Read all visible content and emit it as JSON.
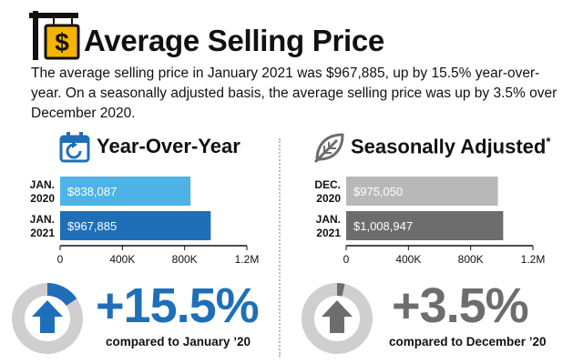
{
  "header": {
    "title": "Average Selling Price",
    "description": "The average selling price in January 2021 was $967,885, up by 15.5% year-over-year. On a seasonally adjusted basis, the average selling price was up by 3.5% over December 2020.",
    "icon": "dollar-sign-icon"
  },
  "yoy": {
    "title": "Year-Over-Year",
    "icon": "calendar-refresh-icon",
    "change": "+15.5%",
    "compared": "compared to January ’20",
    "gauge_fraction": 0.155
  },
  "sa": {
    "title": "Seasonally Adjusted",
    "footnote": "*",
    "icon": "leaf-icon",
    "change": "+3.5%",
    "compared": "compared to December  ’20",
    "gauge_fraction": 0.035
  },
  "colors": {
    "blue_light": "#4eb3e6",
    "blue_dark": "#1f6fb8",
    "grey_light": "#b8b8b8",
    "grey_dark": "#6d6d6d",
    "ring_bg": "#cfcfcf",
    "yellow": "#f4b400"
  },
  "chart_data": [
    {
      "type": "bar",
      "orientation": "horizontal",
      "title": "Year-Over-Year",
      "categories": [
        "JAN.\n2020",
        "JAN.\n2021"
      ],
      "values": [
        838087,
        967885
      ],
      "value_labels": [
        "$838,087",
        "$967,885"
      ],
      "xlim": [
        0,
        1200000
      ],
      "xticks": [
        0,
        400000,
        800000,
        1200000
      ],
      "xtick_labels": [
        "0",
        "400K",
        "800K",
        "1.2M"
      ]
    },
    {
      "type": "bar",
      "orientation": "horizontal",
      "title": "Seasonally Adjusted*",
      "categories": [
        "DEC.\n2020",
        "JAN.\n2021"
      ],
      "values": [
        975050,
        1008947
      ],
      "value_labels": [
        "$975,050",
        "$1,008,947"
      ],
      "xlim": [
        0,
        1200000
      ],
      "xticks": [
        0,
        400000,
        800000,
        1200000
      ],
      "xtick_labels": [
        "0",
        "400K",
        "800K",
        "1.2M"
      ]
    }
  ]
}
